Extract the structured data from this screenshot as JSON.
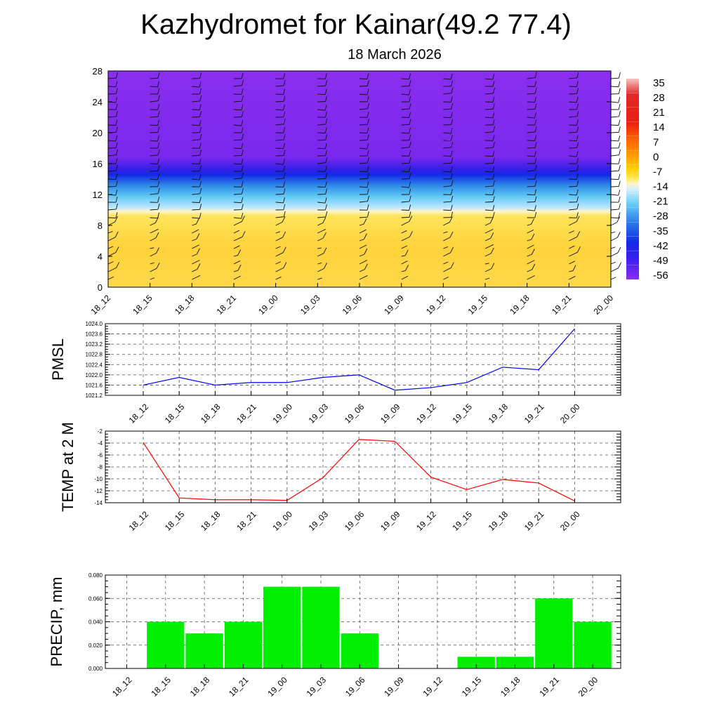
{
  "header": {
    "title": "Kazhydromet for Kainar(49.2 77.4)",
    "subtitle": "18 March 2026"
  },
  "colors": {
    "pmsl_line": "#0000ff",
    "temp_line": "#ff0000",
    "precip_bar": "#00ee00"
  },
  "chart_data": [
    {
      "type": "heatmap",
      "name": "cross-section",
      "x": [
        "18_12",
        "18_15",
        "18_18",
        "18_21",
        "19_00",
        "19_03",
        "19_06",
        "19_09",
        "19_12",
        "19_15",
        "19_18",
        "19_21",
        "20_00"
      ],
      "ylim": [
        0,
        28
      ],
      "yticks": [
        0,
        4,
        8,
        12,
        16,
        20,
        24,
        28
      ],
      "colorbar": {
        "labels": [
          "35",
          "28",
          "21",
          "14",
          "7",
          "0",
          "-7",
          "-14",
          "-21",
          "-28",
          "-35",
          "-42",
          "-49",
          "-56"
        ],
        "levels": [
          35,
          28,
          21,
          14,
          7,
          0,
          -7,
          -14,
          -21,
          -28,
          -35,
          -42,
          -49,
          -56,
          -63
        ]
      },
      "overlay": "wind barbs"
    },
    {
      "type": "line",
      "name": "pmsl",
      "ylabel": "PMSL",
      "categories": [
        "18_12",
        "18_15",
        "18_18",
        "18_21",
        "19_00",
        "19_03",
        "19_06",
        "19_09",
        "19_12",
        "19_15",
        "19_18",
        "19_21",
        "20_00"
      ],
      "values": [
        1021.6,
        1021.9,
        1021.6,
        1021.7,
        1021.7,
        1021.9,
        1022.0,
        1021.4,
        1021.5,
        1021.7,
        1022.3,
        1022.2,
        1023.8
      ],
      "ylim": [
        1021.2,
        1024.0
      ],
      "yticks": [
        1021.2,
        1021.6,
        1022.0,
        1022.4,
        1022.8,
        1023.2,
        1023.6,
        1024.0
      ],
      "ytick_labels": [
        "1021.2",
        "1021.6",
        "1022.0",
        "1022.4",
        "1022.8",
        "1023.2",
        "1023.6",
        "1024.0"
      ]
    },
    {
      "type": "line",
      "name": "temp",
      "ylabel": "TEMP at 2 M",
      "categories": [
        "18_12",
        "18_15",
        "18_18",
        "18_21",
        "19_00",
        "19_03",
        "19_06",
        "19_09",
        "19_12",
        "19_15",
        "19_18",
        "19_21",
        "20_00"
      ],
      "values": [
        -3.9,
        -13.2,
        -13.5,
        -13.5,
        -13.6,
        -9.8,
        -3.4,
        -3.7,
        -9.7,
        -11.8,
        -10.1,
        -10.7,
        -13.7
      ],
      "ylim": [
        -14,
        -2
      ],
      "yticks": [
        -14,
        -12,
        -10,
        -8,
        -6,
        -4,
        -2
      ],
      "ytick_labels": [
        "-14",
        "-12",
        "-10",
        "-8",
        "-6",
        "-4",
        "-2"
      ]
    },
    {
      "type": "bar",
      "name": "precip",
      "ylabel": "PRECIP, mm",
      "categories": [
        "18_12",
        "18_15",
        "18_18",
        "18_21",
        "19_00",
        "19_03",
        "19_06",
        "19_09",
        "19_12",
        "19_15",
        "19_18",
        "19_21",
        "20_00"
      ],
      "values": [
        0.0,
        0.04,
        0.03,
        0.04,
        0.07,
        0.07,
        0.03,
        0.0,
        0.0,
        0.01,
        0.01,
        0.06,
        0.04
      ],
      "ylim": [
        0,
        0.08
      ],
      "yticks": [
        0,
        0.02,
        0.04,
        0.06,
        0.08
      ],
      "ytick_labels": [
        "0.000",
        "0.020",
        "0.040",
        "0.060",
        "0.080"
      ]
    }
  ]
}
